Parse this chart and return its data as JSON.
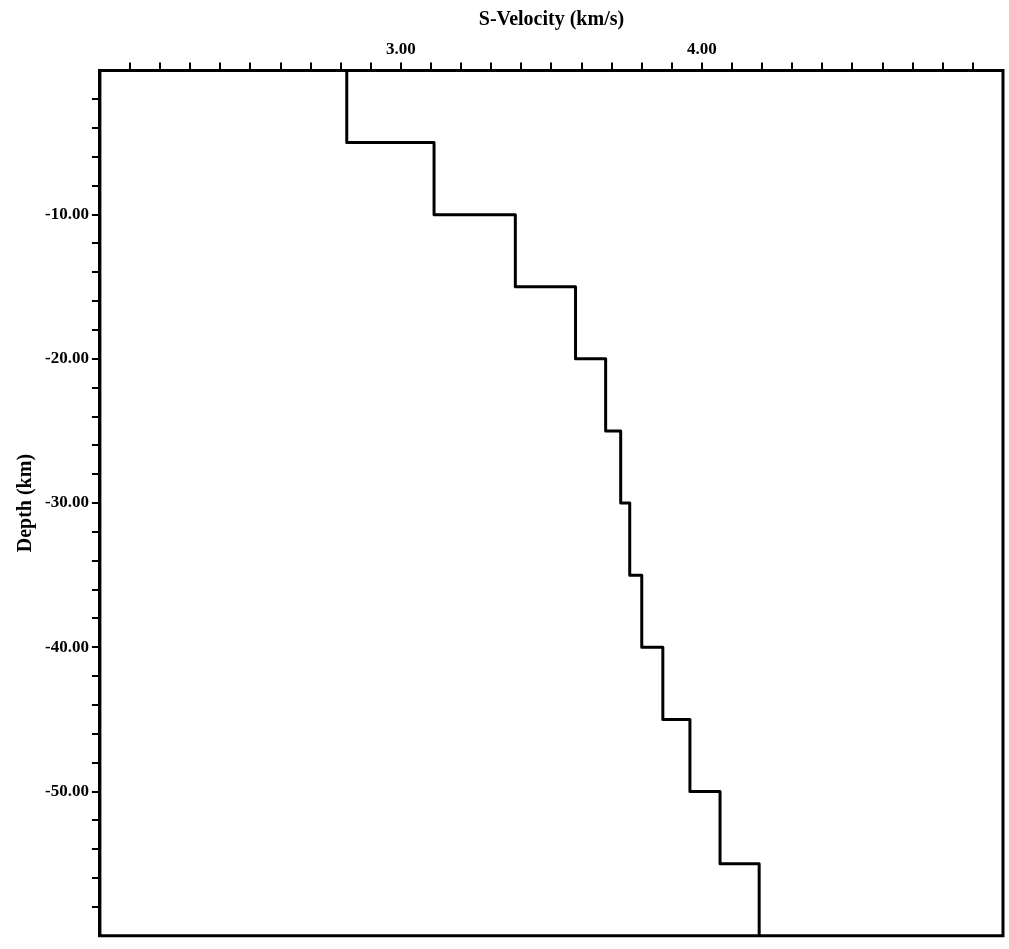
{
  "chart_data": {
    "type": "line",
    "xlabel": "S-Velocity (km/s)",
    "ylabel": "Depth (km)",
    "series": [
      {
        "color": "#000000",
        "x": [
          2.82,
          2.82,
          3.11,
          3.11,
          3.38,
          3.38,
          3.58,
          3.58,
          3.68,
          3.68,
          3.73,
          3.73,
          3.76,
          3.76,
          3.8,
          3.8,
          3.87,
          3.87,
          3.96,
          3.96,
          4.06,
          4.06,
          4.19,
          4.19
        ],
        "values": [
          0,
          -5,
          -5,
          -10,
          -10,
          -15,
          -15,
          -20,
          -20,
          -25,
          -25,
          -30,
          -30,
          -35,
          -35,
          -40,
          -40,
          -45,
          -45,
          -50,
          -50,
          -55,
          -55,
          -60
        ]
      }
    ],
    "xlim": [
      2,
      5
    ],
    "ylim": [
      -60,
      0
    ],
    "xticks": [
      {
        "value": 2.1,
        "label": null
      },
      {
        "value": 2.2,
        "label": null
      },
      {
        "value": 2.3,
        "label": null
      },
      {
        "value": 2.4,
        "label": null
      },
      {
        "value": 2.5,
        "label": null
      },
      {
        "value": 2.6,
        "label": null
      },
      {
        "value": 2.7,
        "label": null
      },
      {
        "value": 2.8,
        "label": null
      },
      {
        "value": 2.9,
        "label": null
      },
      {
        "value": 3,
        "label": "3.00"
      },
      {
        "value": 3.1,
        "label": null
      },
      {
        "value": 3.2,
        "label": null
      },
      {
        "value": 3.3,
        "label": null
      },
      {
        "value": 3.4,
        "label": null
      },
      {
        "value": 3.5,
        "label": null
      },
      {
        "value": 3.6,
        "label": null
      },
      {
        "value": 3.7,
        "label": null
      },
      {
        "value": 3.8,
        "label": null
      },
      {
        "value": 3.9,
        "label": null
      },
      {
        "value": 4,
        "label": "4.00"
      },
      {
        "value": 4.1,
        "label": null
      },
      {
        "value": 4.2,
        "label": null
      },
      {
        "value": 4.3,
        "label": null
      },
      {
        "value": 4.4,
        "label": null
      },
      {
        "value": 4.5,
        "label": null
      },
      {
        "value": 4.6,
        "label": null
      },
      {
        "value": 4.7,
        "label": null
      },
      {
        "value": 4.8,
        "label": null
      },
      {
        "value": 4.9,
        "label": null
      }
    ],
    "yticks": [
      {
        "value": -58,
        "label": null
      },
      {
        "value": -56,
        "label": null
      },
      {
        "value": -54,
        "label": null
      },
      {
        "value": -52,
        "label": null
      },
      {
        "value": -50,
        "label": "-50.00"
      },
      {
        "value": -48,
        "label": null
      },
      {
        "value": -46,
        "label": null
      },
      {
        "value": -44,
        "label": null
      },
      {
        "value": -42,
        "label": null
      },
      {
        "value": -40,
        "label": "-40.00"
      },
      {
        "value": -38,
        "label": null
      },
      {
        "value": -36,
        "label": null
      },
      {
        "value": -34,
        "label": null
      },
      {
        "value": -32,
        "label": null
      },
      {
        "value": -30,
        "label": "-30.00"
      },
      {
        "value": -28,
        "label": null
      },
      {
        "value": -26,
        "label": null
      },
      {
        "value": -24,
        "label": null
      },
      {
        "value": -22,
        "label": null
      },
      {
        "value": -20,
        "label": "-20.00"
      },
      {
        "value": -18,
        "label": null
      },
      {
        "value": -16,
        "label": null
      },
      {
        "value": -14,
        "label": null
      },
      {
        "value": -12,
        "label": null
      },
      {
        "value": -10,
        "label": "-10.00"
      },
      {
        "value": -8,
        "label": null
      },
      {
        "value": -6,
        "label": null
      },
      {
        "value": -4,
        "label": null
      },
      {
        "value": -2,
        "label": null
      }
    ],
    "grid": false,
    "legend": false,
    "marker": "none",
    "line_style": "solid"
  }
}
